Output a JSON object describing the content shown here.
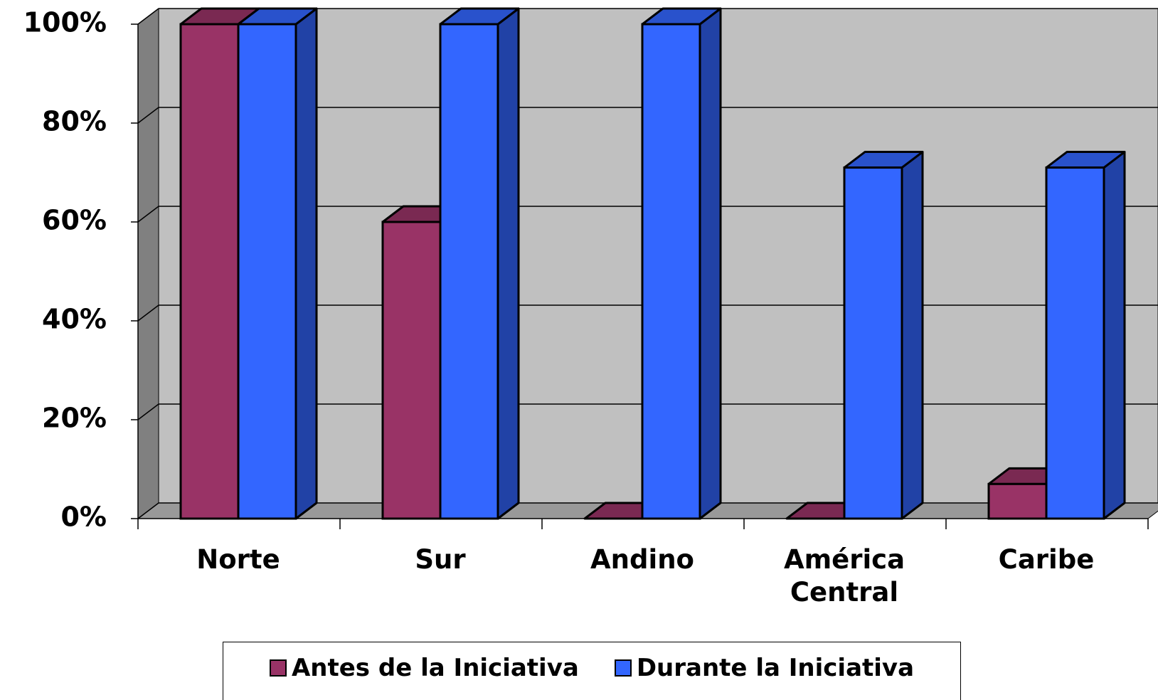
{
  "chart_data": {
    "type": "bar3d",
    "categories": [
      "Norte",
      "Sur",
      "Andino",
      "América Central",
      "Caribe"
    ],
    "series": [
      {
        "name": "Antes de la Iniciativa",
        "color": "#993366",
        "values": [
          100,
          60,
          0,
          0,
          7
        ]
      },
      {
        "name": "Durante la Iniciativa",
        "color": "#3366ff",
        "values": [
          100,
          100,
          100,
          71,
          71
        ]
      }
    ],
    "ylim": [
      0,
      100
    ],
    "yticks": [
      {
        "value": 0,
        "label": "0%"
      },
      {
        "value": 20,
        "label": "20%"
      },
      {
        "value": 40,
        "label": "40%"
      },
      {
        "value": 60,
        "label": "60%"
      },
      {
        "value": 80,
        "label": "80%"
      },
      {
        "value": 100,
        "label": "100%"
      }
    ],
    "grid": true,
    "legend": "bottom"
  }
}
